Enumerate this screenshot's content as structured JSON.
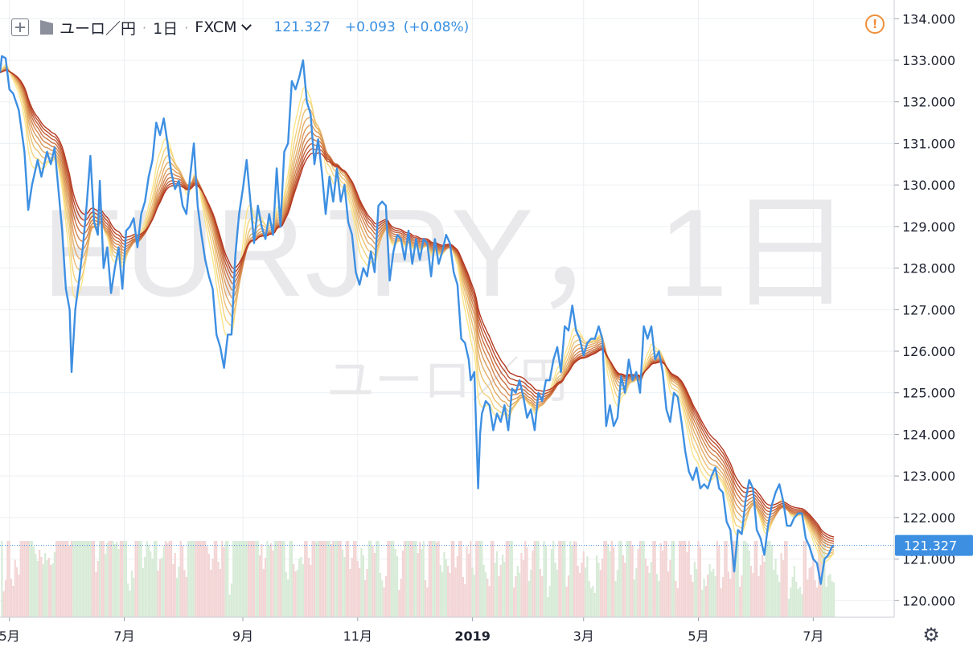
{
  "header": {
    "symbol": "ユーロ／円",
    "interval": "1日",
    "source": "FXCM",
    "price": "121.327",
    "change": "+0.093",
    "change_pct": "(+0.08%)",
    "icons": {
      "add": "plus-square-icon",
      "flag": "flag-icon",
      "dropdown": "chevron-down-icon",
      "alert": "alert-icon",
      "settings": "gear-icon"
    }
  },
  "watermark": {
    "line1": "EURJPY，1日",
    "line2": "ユーロ／円"
  },
  "colors": {
    "price_line": "#3d8fe2",
    "last_price_label": "#3d8fe2",
    "grid": "#eceff2",
    "axis_text": "#1f2330",
    "ribbon_fast": "#fbe58a",
    "ribbon_slow": "#b33820",
    "vol_up": "#d7ebd7",
    "vol_down": "#f3d5d5"
  },
  "chart_data": {
    "type": "line",
    "title": "",
    "xlabel": "",
    "ylabel": "",
    "ylim": [
      119.6,
      134.45
    ],
    "y_ticks": [
      "120.000",
      "121.000",
      "122.000",
      "123.000",
      "124.000",
      "125.000",
      "126.000",
      "127.000",
      "128.000",
      "129.000",
      "130.000",
      "131.000",
      "132.000",
      "133.000",
      "134.000"
    ],
    "x_ticks": [
      {
        "label": "5月",
        "day": 5
      },
      {
        "label": "7月",
        "day": 66
      },
      {
        "label": "9月",
        "day": 129
      },
      {
        "label": "11月",
        "day": 190
      },
      {
        "label": "2019",
        "day": 251
      },
      {
        "label": "3月",
        "day": 310
      },
      {
        "label": "5月",
        "day": 371
      },
      {
        "label": "7月",
        "day": 432
      }
    ],
    "x_range": [
      0,
      475
    ],
    "last_price": 121.327,
    "last_price_label": "121.327",
    "price": [
      [
        0,
        132.7
      ],
      [
        1,
        133.1
      ],
      [
        3,
        133.05
      ],
      [
        5,
        132.3
      ],
      [
        7,
        132.2
      ],
      [
        10,
        131.8
      ],
      [
        13,
        130.8
      ],
      [
        15,
        129.4
      ],
      [
        17,
        130.0
      ],
      [
        20,
        130.6
      ],
      [
        22,
        130.2
      ],
      [
        25,
        130.8
      ],
      [
        27,
        130.5
      ],
      [
        29,
        130.9
      ],
      [
        31,
        129.9
      ],
      [
        33,
        128.9
      ],
      [
        35,
        127.5
      ],
      [
        37,
        127.0
      ],
      [
        38,
        125.5
      ],
      [
        40,
        127.0
      ],
      [
        42,
        127.7
      ],
      [
        44,
        128.5
      ],
      [
        46,
        129.5
      ],
      [
        48,
        130.7
      ],
      [
        50,
        129.1
      ],
      [
        52,
        128.8
      ],
      [
        53,
        130.1
      ],
      [
        55,
        128.0
      ],
      [
        57,
        128.5
      ],
      [
        59,
        127.4
      ],
      [
        61,
        128.0
      ],
      [
        63,
        128.5
      ],
      [
        65,
        127.5
      ],
      [
        67,
        128.9
      ],
      [
        69,
        129.0
      ],
      [
        71,
        129.2
      ],
      [
        73,
        128.5
      ],
      [
        75,
        129.3
      ],
      [
        77,
        129.6
      ],
      [
        79,
        130.2
      ],
      [
        81,
        130.6
      ],
      [
        83,
        131.5
      ],
      [
        85,
        131.2
      ],
      [
        87,
        131.6
      ],
      [
        89,
        131.0
      ],
      [
        91,
        130.3
      ],
      [
        93,
        129.9
      ],
      [
        95,
        130.1
      ],
      [
        97,
        129.5
      ],
      [
        99,
        129.3
      ],
      [
        101,
        130.2
      ],
      [
        103,
        131.0
      ],
      [
        105,
        129.5
      ],
      [
        107,
        128.8
      ],
      [
        109,
        128.2
      ],
      [
        111,
        127.8
      ],
      [
        113,
        127.5
      ],
      [
        115,
        126.4
      ],
      [
        117,
        126.1
      ],
      [
        119,
        125.6
      ],
      [
        121,
        126.4
      ],
      [
        123,
        126.4
      ],
      [
        125,
        128.3
      ],
      [
        127,
        129.3
      ],
      [
        129,
        129.9
      ],
      [
        131,
        130.6
      ],
      [
        133,
        129.6
      ],
      [
        135,
        128.6
      ],
      [
        137,
        129.5
      ],
      [
        139,
        129.0
      ],
      [
        141,
        128.7
      ],
      [
        143,
        129.3
      ],
      [
        145,
        128.8
      ],
      [
        147,
        130.4
      ],
      [
        149,
        129.0
      ],
      [
        151,
        130.8
      ],
      [
        153,
        131.0
      ],
      [
        155,
        132.5
      ],
      [
        157,
        132.3
      ],
      [
        159,
        132.6
      ],
      [
        161,
        133.0
      ],
      [
        163,
        132.0
      ],
      [
        165,
        131.7
      ],
      [
        167,
        130.5
      ],
      [
        169,
        131.1
      ],
      [
        171,
        130.3
      ],
      [
        173,
        129.3
      ],
      [
        175,
        130.2
      ],
      [
        177,
        129.6
      ],
      [
        179,
        130.4
      ],
      [
        181,
        129.6
      ],
      [
        183,
        130.0
      ],
      [
        185,
        129.1
      ],
      [
        187,
        128.8
      ],
      [
        189,
        127.9
      ],
      [
        191,
        127.6
      ],
      [
        193,
        128.0
      ],
      [
        195,
        127.8
      ],
      [
        197,
        128.4
      ],
      [
        199,
        127.9
      ],
      [
        201,
        129.5
      ],
      [
        203,
        129.6
      ],
      [
        205,
        129.5
      ],
      [
        207,
        127.7
      ],
      [
        209,
        128.4
      ],
      [
        211,
        128.8
      ],
      [
        213,
        128.7
      ],
      [
        215,
        128.2
      ],
      [
        217,
        128.9
      ],
      [
        219,
        128.1
      ],
      [
        221,
        128.7
      ],
      [
        223,
        128.2
      ],
      [
        225,
        128.7
      ],
      [
        227,
        128.6
      ],
      [
        229,
        127.8
      ],
      [
        231,
        128.7
      ],
      [
        233,
        128.1
      ],
      [
        235,
        128.4
      ],
      [
        237,
        128.8
      ],
      [
        239,
        128.6
      ],
      [
        241,
        127.9
      ],
      [
        243,
        127.6
      ],
      [
        245,
        126.3
      ],
      [
        247,
        126.2
      ],
      [
        249,
        125.8
      ],
      [
        250,
        125.3
      ],
      [
        252,
        125.5
      ],
      [
        254,
        122.7
      ],
      [
        255,
        124.0
      ],
      [
        256,
        124.5
      ],
      [
        258,
        124.8
      ],
      [
        260,
        124.7
      ],
      [
        262,
        124.1
      ],
      [
        264,
        124.5
      ],
      [
        266,
        124.3
      ],
      [
        268,
        124.7
      ],
      [
        270,
        124.1
      ],
      [
        272,
        125.1
      ],
      [
        274,
        125.0
      ],
      [
        276,
        125.3
      ],
      [
        278,
        124.9
      ],
      [
        280,
        124.4
      ],
      [
        282,
        124.6
      ],
      [
        284,
        124.1
      ],
      [
        286,
        125.0
      ],
      [
        288,
        124.8
      ],
      [
        290,
        125.3
      ],
      [
        292,
        125.3
      ],
      [
        294,
        125.8
      ],
      [
        296,
        126.1
      ],
      [
        298,
        125.5
      ],
      [
        300,
        126.6
      ],
      [
        302,
        126.5
      ],
      [
        304,
        127.1
      ],
      [
        306,
        126.5
      ],
      [
        308,
        126.3
      ],
      [
        310,
        125.9
      ],
      [
        312,
        126.2
      ],
      [
        314,
        126.3
      ],
      [
        316,
        126.3
      ],
      [
        318,
        126.6
      ],
      [
        320,
        126.3
      ],
      [
        322,
        124.2
      ],
      [
        324,
        124.7
      ],
      [
        326,
        124.2
      ],
      [
        328,
        124.4
      ],
      [
        330,
        125.4
      ],
      [
        332,
        125.0
      ],
      [
        334,
        125.8
      ],
      [
        336,
        125.3
      ],
      [
        338,
        125.5
      ],
      [
        340,
        125.0
      ],
      [
        342,
        126.6
      ],
      [
        344,
        126.3
      ],
      [
        346,
        126.6
      ],
      [
        348,
        125.8
      ],
      [
        350,
        126.0
      ],
      [
        352,
        125.5
      ],
      [
        354,
        124.6
      ],
      [
        356,
        124.3
      ],
      [
        358,
        125.0
      ],
      [
        360,
        124.9
      ],
      [
        362,
        124.3
      ],
      [
        364,
        123.6
      ],
      [
        366,
        123.1
      ],
      [
        368,
        122.9
      ],
      [
        370,
        123.2
      ],
      [
        372,
        122.7
      ],
      [
        374,
        122.8
      ],
      [
        376,
        122.7
      ],
      [
        378,
        123.0
      ],
      [
        380,
        123.2
      ],
      [
        382,
        122.7
      ],
      [
        384,
        122.6
      ],
      [
        386,
        121.9
      ],
      [
        388,
        121.7
      ],
      [
        390,
        120.7
      ],
      [
        392,
        121.7
      ],
      [
        394,
        121.6
      ],
      [
        396,
        122.4
      ],
      [
        398,
        122.9
      ],
      [
        400,
        122.7
      ],
      [
        402,
        121.7
      ],
      [
        404,
        121.5
      ],
      [
        406,
        121.1
      ],
      [
        408,
        121.8
      ],
      [
        410,
        122.3
      ],
      [
        412,
        122.6
      ],
      [
        414,
        122.8
      ],
      [
        416,
        122.4
      ],
      [
        418,
        121.8
      ],
      [
        420,
        121.8
      ],
      [
        422,
        122.0
      ],
      [
        424,
        122.1
      ],
      [
        426,
        122.1
      ],
      [
        428,
        121.5
      ],
      [
        430,
        121.3
      ],
      [
        432,
        121.0
      ],
      [
        434,
        120.9
      ],
      [
        436,
        120.4
      ],
      [
        438,
        121.0
      ],
      [
        440,
        121.1
      ],
      [
        442,
        121.3
      ],
      [
        443,
        121.33
      ]
    ],
    "ribbon_levels": 10,
    "volume_scale": [
      0,
      1
    ]
  }
}
